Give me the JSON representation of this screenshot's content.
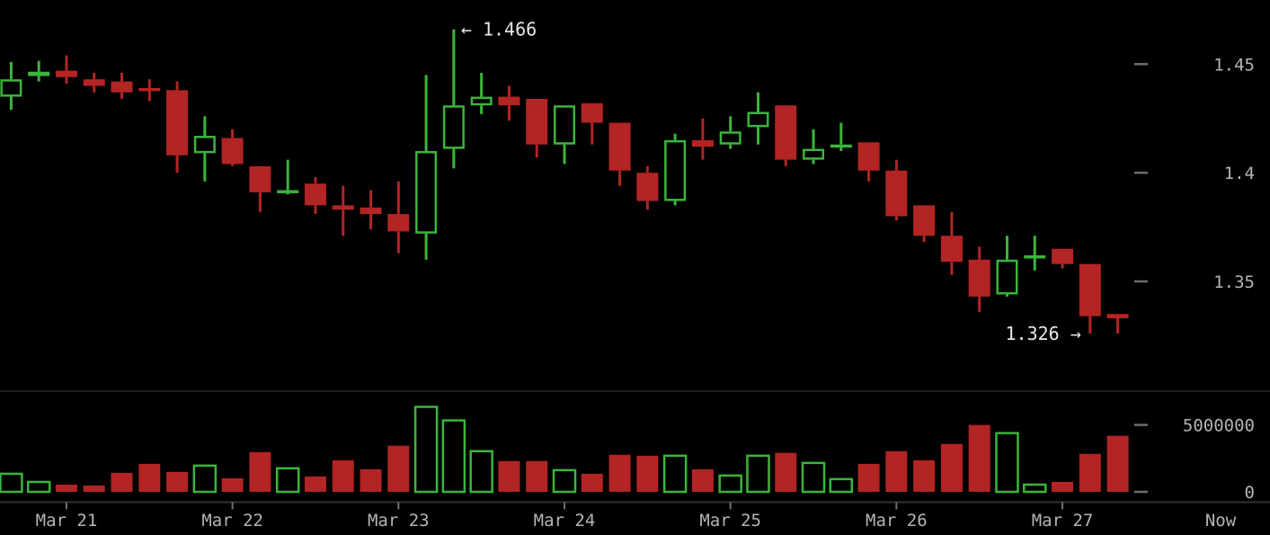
{
  "window": {
    "title": "BTC trading candlestick chart"
  },
  "chart_data": {
    "type": "candlestick",
    "title": "",
    "xlabel": "",
    "ylabel": "",
    "legend": "none",
    "grid": "off",
    "price_axis": {
      "side": "right",
      "tick_labels": [
        "1.45",
        "1.4",
        "1.35"
      ],
      "tick_values": [
        1.45,
        1.4,
        1.35
      ],
      "ylim": [
        1.2995,
        1.4795
      ]
    },
    "volume_axis": {
      "side": "right",
      "tick_labels": [
        "5000000",
        "0"
      ],
      "tick_values": [
        5000000,
        0
      ],
      "ylim": [
        0,
        7300000
      ]
    },
    "x_axis": {
      "labels": [
        {
          "label": "Mar 21",
          "candle_index": 2
        },
        {
          "label": "Mar 22",
          "candle_index": 8
        },
        {
          "label": "Mar 23",
          "candle_index": 14
        },
        {
          "label": "Mar 24",
          "candle_index": 20
        },
        {
          "label": "Mar 25",
          "candle_index": 26
        },
        {
          "label": "Mar 26",
          "candle_index": 32
        },
        {
          "label": "Mar 27",
          "candle_index": 38
        },
        {
          "label": "Now",
          "candle_index": -1
        }
      ],
      "period": "4h"
    },
    "annotations": [
      {
        "id": "high-marker",
        "candle_index": 16,
        "text": "← 1.466",
        "value": 1.466,
        "anchor": "start"
      },
      {
        "id": "low-marker",
        "candle_index": 39,
        "text": "1.326 →",
        "value": 1.326,
        "anchor": "end"
      }
    ],
    "candles": [
      {
        "o": 1.435,
        "h": 1.451,
        "l": 1.429,
        "c": 1.443,
        "v": 1350000
      },
      {
        "o": 1.4445,
        "h": 1.4515,
        "l": 1.442,
        "c": 1.4465,
        "v": 740000
      },
      {
        "o": 1.447,
        "h": 1.454,
        "l": 1.441,
        "c": 1.444,
        "v": 540000
      },
      {
        "o": 1.443,
        "h": 1.446,
        "l": 1.437,
        "c": 1.44,
        "v": 470000
      },
      {
        "o": 1.442,
        "h": 1.446,
        "l": 1.434,
        "c": 1.437,
        "v": 1420000
      },
      {
        "o": 1.439,
        "h": 1.443,
        "l": 1.433,
        "c": 1.438,
        "v": 2090000
      },
      {
        "o": 1.438,
        "h": 1.442,
        "l": 1.4,
        "c": 1.408,
        "v": 1490000
      },
      {
        "o": 1.409,
        "h": 1.426,
        "l": 1.396,
        "c": 1.417,
        "v": 1960000
      },
      {
        "o": 1.416,
        "h": 1.42,
        "l": 1.403,
        "c": 1.404,
        "v": 1010000
      },
      {
        "o": 1.403,
        "h": 1.403,
        "l": 1.382,
        "c": 1.391,
        "v": 2970000
      },
      {
        "o": 1.391,
        "h": 1.406,
        "l": 1.39,
        "c": 1.392,
        "v": 1760000
      },
      {
        "o": 1.395,
        "h": 1.398,
        "l": 1.381,
        "c": 1.385,
        "v": 1150000
      },
      {
        "o": 1.385,
        "h": 1.394,
        "l": 1.371,
        "c": 1.383,
        "v": 2360000
      },
      {
        "o": 1.384,
        "h": 1.392,
        "l": 1.374,
        "c": 1.381,
        "v": 1690000
      },
      {
        "o": 1.381,
        "h": 1.396,
        "l": 1.363,
        "c": 1.373,
        "v": 3450000
      },
      {
        "o": 1.372,
        "h": 1.445,
        "l": 1.36,
        "c": 1.41,
        "v": 6350000
      },
      {
        "o": 1.411,
        "h": 1.466,
        "l": 1.402,
        "c": 1.431,
        "v": 5340000
      },
      {
        "o": 1.431,
        "h": 1.446,
        "l": 1.427,
        "c": 1.435,
        "v": 3040000
      },
      {
        "o": 1.435,
        "h": 1.44,
        "l": 1.424,
        "c": 1.431,
        "v": 2300000
      },
      {
        "o": 1.434,
        "h": 1.434,
        "l": 1.407,
        "c": 1.413,
        "v": 2300000
      },
      {
        "o": 1.413,
        "h": 1.431,
        "l": 1.404,
        "c": 1.431,
        "v": 1620000
      },
      {
        "o": 1.432,
        "h": 1.432,
        "l": 1.413,
        "c": 1.423,
        "v": 1350000
      },
      {
        "o": 1.423,
        "h": 1.423,
        "l": 1.394,
        "c": 1.401,
        "v": 2770000
      },
      {
        "o": 1.4,
        "h": 1.403,
        "l": 1.383,
        "c": 1.387,
        "v": 2700000
      },
      {
        "o": 1.387,
        "h": 1.418,
        "l": 1.385,
        "c": 1.415,
        "v": 2700000
      },
      {
        "o": 1.415,
        "h": 1.425,
        "l": 1.406,
        "c": 1.412,
        "v": 1690000
      },
      {
        "o": 1.413,
        "h": 1.426,
        "l": 1.411,
        "c": 1.419,
        "v": 1220000
      },
      {
        "o": 1.421,
        "h": 1.437,
        "l": 1.413,
        "c": 1.428,
        "v": 2700000
      },
      {
        "o": 1.431,
        "h": 1.431,
        "l": 1.403,
        "c": 1.406,
        "v": 2910000
      },
      {
        "o": 1.406,
        "h": 1.42,
        "l": 1.404,
        "c": 1.411,
        "v": 2160000
      },
      {
        "o": 1.412,
        "h": 1.423,
        "l": 1.41,
        "c": 1.413,
        "v": 950000
      },
      {
        "o": 1.414,
        "h": 1.414,
        "l": 1.396,
        "c": 1.401,
        "v": 2090000
      },
      {
        "o": 1.401,
        "h": 1.406,
        "l": 1.378,
        "c": 1.38,
        "v": 3040000
      },
      {
        "o": 1.385,
        "h": 1.385,
        "l": 1.368,
        "c": 1.371,
        "v": 2360000
      },
      {
        "o": 1.371,
        "h": 1.382,
        "l": 1.353,
        "c": 1.359,
        "v": 3580000
      },
      {
        "o": 1.36,
        "h": 1.366,
        "l": 1.336,
        "c": 1.343,
        "v": 5000000
      },
      {
        "o": 1.344,
        "h": 1.371,
        "l": 1.343,
        "c": 1.36,
        "v": 4390000
      },
      {
        "o": 1.361,
        "h": 1.371,
        "l": 1.355,
        "c": 1.362,
        "v": 540000
      },
      {
        "o": 1.365,
        "h": 1.365,
        "l": 1.356,
        "c": 1.358,
        "v": 740000
      },
      {
        "o": 1.358,
        "h": 1.358,
        "l": 1.326,
        "c": 1.334,
        "v": 2840000
      },
      {
        "o": 1.335,
        "h": 1.335,
        "l": 1.326,
        "c": 1.333,
        "v": 4190000
      }
    ],
    "colors": {
      "up": "#3cb43c",
      "down": "#b32424",
      "background": "#000000",
      "axis_text": "#b4b4b4",
      "annotation_text": "#e8e8e8",
      "axis_line": "#333333",
      "tick_mark": "#6e6e6e",
      "divider": "#1c1c1c"
    }
  }
}
